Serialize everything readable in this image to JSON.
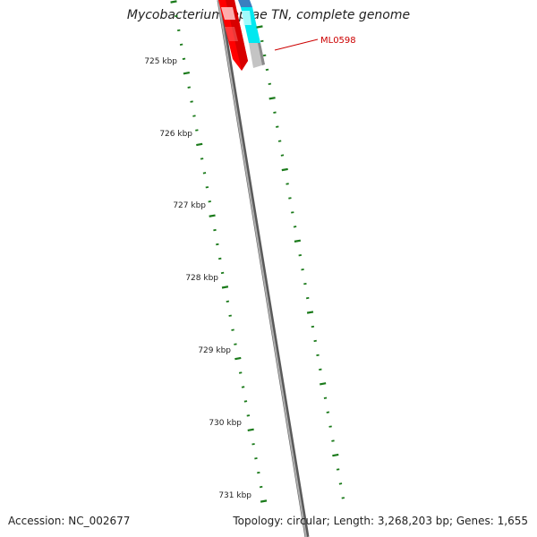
{
  "title": "Mycobacterium leprae TN, complete genome",
  "accession": "Accession: NC_002677",
  "topology": "Topology: circular; Length: 3,268,203 bp; Genes: 1,655",
  "ticks": [
    "725 kbp",
    "726 kbp",
    "727 kbp",
    "728 kbp",
    "729 kbp",
    "730 kbp",
    "731 kbp"
  ],
  "gene_label": "ML0598",
  "colors": {
    "backbone": "#8a8a8a",
    "tick_marks": "#1a7a1a",
    "forward_gene": "#ff0000",
    "reverse_gene": "#00e5f0",
    "gene_label": "#cc0000"
  }
}
